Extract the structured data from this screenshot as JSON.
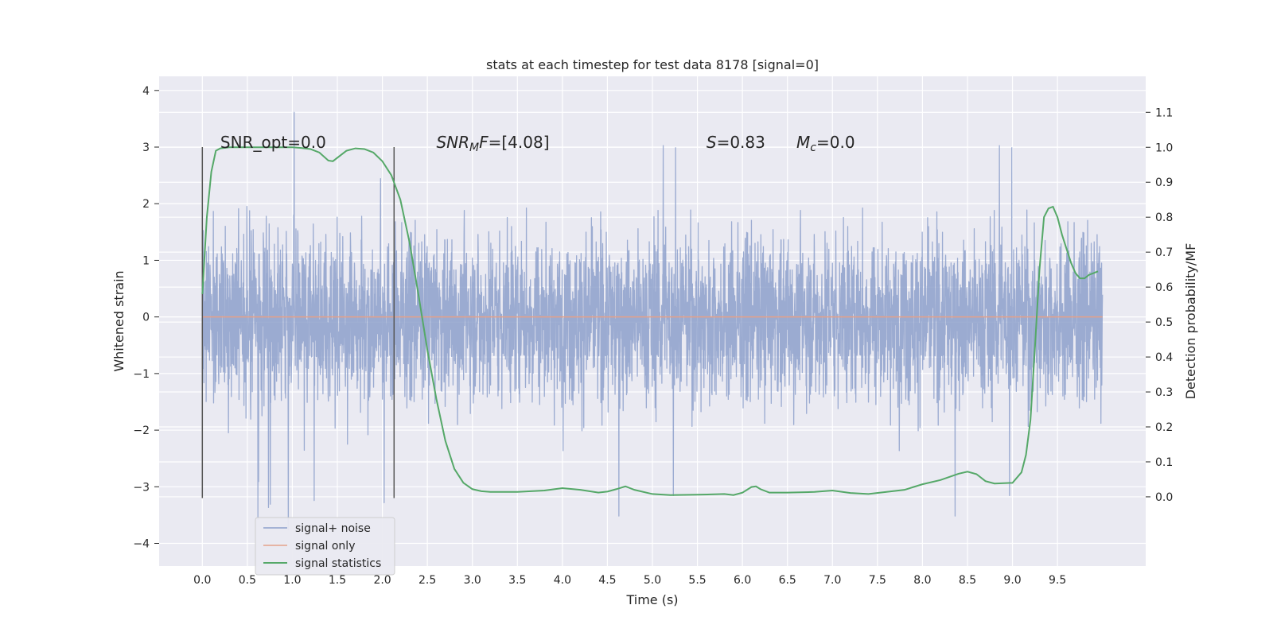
{
  "chart_data": {
    "type": "line",
    "title": "stats at each timestep for test data 8178 [signal=0]",
    "xlabel": "Time (s)",
    "ylabel": "Whitened strain",
    "y2label": "Detection probability/MF",
    "xlim": [
      -0.48,
      10.48
    ],
    "ylim": [
      -4.4,
      4.25
    ],
    "y2lim": [
      -0.198,
      1.203
    ],
    "xticks": [
      0.0,
      0.5,
      1.0,
      1.5,
      2.0,
      2.5,
      3.0,
      3.5,
      4.0,
      4.5,
      5.0,
      5.5,
      6.0,
      6.5,
      7.0,
      7.5,
      8.0,
      8.5,
      9.0,
      9.5
    ],
    "xtick_labels": [
      "0.0",
      "0.5",
      "1.0",
      "1.5",
      "2.0",
      "2.5",
      "3.0",
      "3.5",
      "4.0",
      "4.5",
      "5.0",
      "5.5",
      "6.0",
      "6.5",
      "7.0",
      "7.5",
      "8.0",
      "8.5",
      "9.0",
      "9.5"
    ],
    "yticks": [
      -4,
      -3,
      -2,
      -1,
      0,
      1,
      2,
      3,
      4
    ],
    "ytick_labels": [
      "−4",
      "−3",
      "−2",
      "−1",
      "0",
      "1",
      "2",
      "3",
      "4"
    ],
    "y2ticks": [
      0.0,
      0.1,
      0.2,
      0.3,
      0.4,
      0.5,
      0.6,
      0.7,
      0.8,
      0.9,
      1.0,
      1.1
    ],
    "y2tick_labels": [
      "0.0",
      "0.1",
      "0.2",
      "0.3",
      "0.4",
      "0.5",
      "0.6",
      "0.7",
      "0.8",
      "0.9",
      "1.0",
      "1.1"
    ],
    "grid": true,
    "legend_position": "lower-left",
    "series": [
      {
        "name": "signal+ noise",
        "color": "#8da0cb",
        "axis": "left",
        "x_range": [
          0.0,
          10.0
        ],
        "noise_envelope": {
          "typical_amplitude": 2.3,
          "max": 3.85,
          "min": -4.05
        }
      },
      {
        "name": "signal only",
        "color": "#e5a189",
        "axis": "left",
        "x": [
          0.0,
          10.0
        ],
        "y": [
          0.0,
          0.0
        ]
      },
      {
        "name": "signal statistics",
        "color": "#55a868",
        "axis": "right",
        "x": [
          0.0,
          0.05,
          0.1,
          0.15,
          0.2,
          0.3,
          0.4,
          0.5,
          0.6,
          0.8,
          1.0,
          1.1,
          1.2,
          1.3,
          1.4,
          1.45,
          1.5,
          1.6,
          1.7,
          1.8,
          1.9,
          2.0,
          2.1,
          2.2,
          2.3,
          2.4,
          2.5,
          2.6,
          2.7,
          2.8,
          2.9,
          3.0,
          3.1,
          3.2,
          3.5,
          3.8,
          4.0,
          4.2,
          4.4,
          4.5,
          4.6,
          4.7,
          4.8,
          5.0,
          5.2,
          5.5,
          5.8,
          5.9,
          6.0,
          6.1,
          6.15,
          6.2,
          6.3,
          6.5,
          6.8,
          7.0,
          7.2,
          7.4,
          7.6,
          7.8,
          8.0,
          8.2,
          8.4,
          8.5,
          8.6,
          8.7,
          8.8,
          9.0,
          9.1,
          9.15,
          9.2,
          9.25,
          9.3,
          9.35,
          9.4,
          9.45,
          9.5,
          9.55,
          9.6,
          9.65,
          9.7,
          9.75,
          9.8,
          9.85,
          9.9,
          9.95
        ],
        "y": [
          0.58,
          0.8,
          0.93,
          0.99,
          0.997,
          1.0,
          1.0,
          1.0,
          1.0,
          1.0,
          1.0,
          0.998,
          0.995,
          0.985,
          0.962,
          0.96,
          0.97,
          0.99,
          0.997,
          0.995,
          0.985,
          0.96,
          0.92,
          0.85,
          0.73,
          0.58,
          0.42,
          0.28,
          0.16,
          0.08,
          0.04,
          0.022,
          0.016,
          0.014,
          0.014,
          0.018,
          0.025,
          0.02,
          0.012,
          0.015,
          0.022,
          0.03,
          0.02,
          0.008,
          0.005,
          0.006,
          0.008,
          0.005,
          0.012,
          0.028,
          0.03,
          0.022,
          0.012,
          0.012,
          0.014,
          0.018,
          0.011,
          0.008,
          0.014,
          0.02,
          0.036,
          0.048,
          0.066,
          0.072,
          0.065,
          0.045,
          0.038,
          0.04,
          0.07,
          0.12,
          0.22,
          0.43,
          0.65,
          0.8,
          0.825,
          0.83,
          0.8,
          0.75,
          0.71,
          0.67,
          0.64,
          0.625,
          0.625,
          0.635,
          0.64,
          0.645
        ]
      }
    ],
    "vertical_markers": [
      {
        "x": 0.0,
        "ymin": -3.2,
        "ymax": 3.0
      },
      {
        "x": 2.13,
        "ymin": -3.2,
        "ymax": 3.0
      }
    ],
    "annotations": [
      {
        "x": 0.2,
        "y": 3.0,
        "text": "SNR_opt=0.0"
      },
      {
        "x": 2.6,
        "y": 3.0,
        "parts": [
          [
            "SNR",
            "italic"
          ],
          [
            "M",
            "italic-sub"
          ],
          [
            "F",
            "italic"
          ],
          [
            "=[4.08]",
            "normal"
          ]
        ]
      },
      {
        "x": 5.6,
        "y": 3.0,
        "parts": [
          [
            "S",
            "italic"
          ],
          [
            "=0.83",
            "normal"
          ]
        ]
      },
      {
        "x": 6.6,
        "y": 3.0,
        "parts": [
          [
            "M",
            "italic"
          ],
          [
            "c",
            "italic-sub"
          ],
          [
            "=0.0",
            "normal"
          ]
        ]
      }
    ]
  }
}
